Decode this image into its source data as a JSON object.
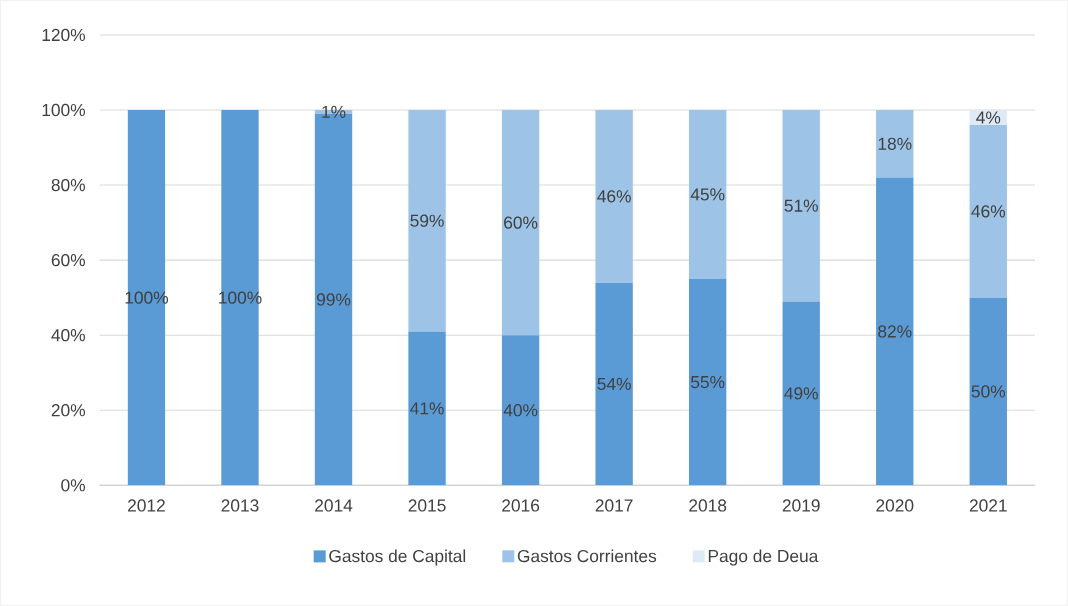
{
  "chart_data": {
    "type": "bar",
    "stacked": true,
    "categories": [
      "2012",
      "2013",
      "2014",
      "2015",
      "2016",
      "2017",
      "2018",
      "2019",
      "2020",
      "2021"
    ],
    "series": [
      {
        "name": "Gastos de Capital",
        "color": "#5b9bd5",
        "values": [
          100,
          100,
          99,
          41,
          40,
          54,
          55,
          49,
          82,
          50
        ],
        "value_labels": [
          "100%",
          "100%",
          "99%",
          "41%",
          "40%",
          "54%",
          "55%",
          "49%",
          "82%",
          "50%"
        ]
      },
      {
        "name": "Gastos Corrientes",
        "color": "#9dc3e6",
        "values": [
          0,
          0,
          1,
          59,
          60,
          46,
          45,
          51,
          18,
          46
        ],
        "value_labels": [
          null,
          null,
          "1%",
          "59%",
          "60%",
          "46%",
          "45%",
          "51%",
          "18%",
          "46%"
        ]
      },
      {
        "name": "Pago de Deua",
        "color": "#deebf7",
        "values": [
          0,
          0,
          0,
          0,
          0,
          0,
          0,
          0,
          0,
          4
        ],
        "value_labels": [
          null,
          null,
          null,
          null,
          null,
          null,
          null,
          null,
          null,
          "4%"
        ]
      }
    ],
    "ylim": [
      0,
      120
    ],
    "yticks": [
      {
        "value": 0,
        "label": "0%"
      },
      {
        "value": 20,
        "label": "20%"
      },
      {
        "value": 40,
        "label": "40%"
      },
      {
        "value": 60,
        "label": "60%"
      },
      {
        "value": 80,
        "label": "80%"
      },
      {
        "value": 100,
        "label": "100%"
      },
      {
        "value": 120,
        "label": "120%"
      }
    ],
    "grid": "y",
    "legend": "bottom"
  }
}
